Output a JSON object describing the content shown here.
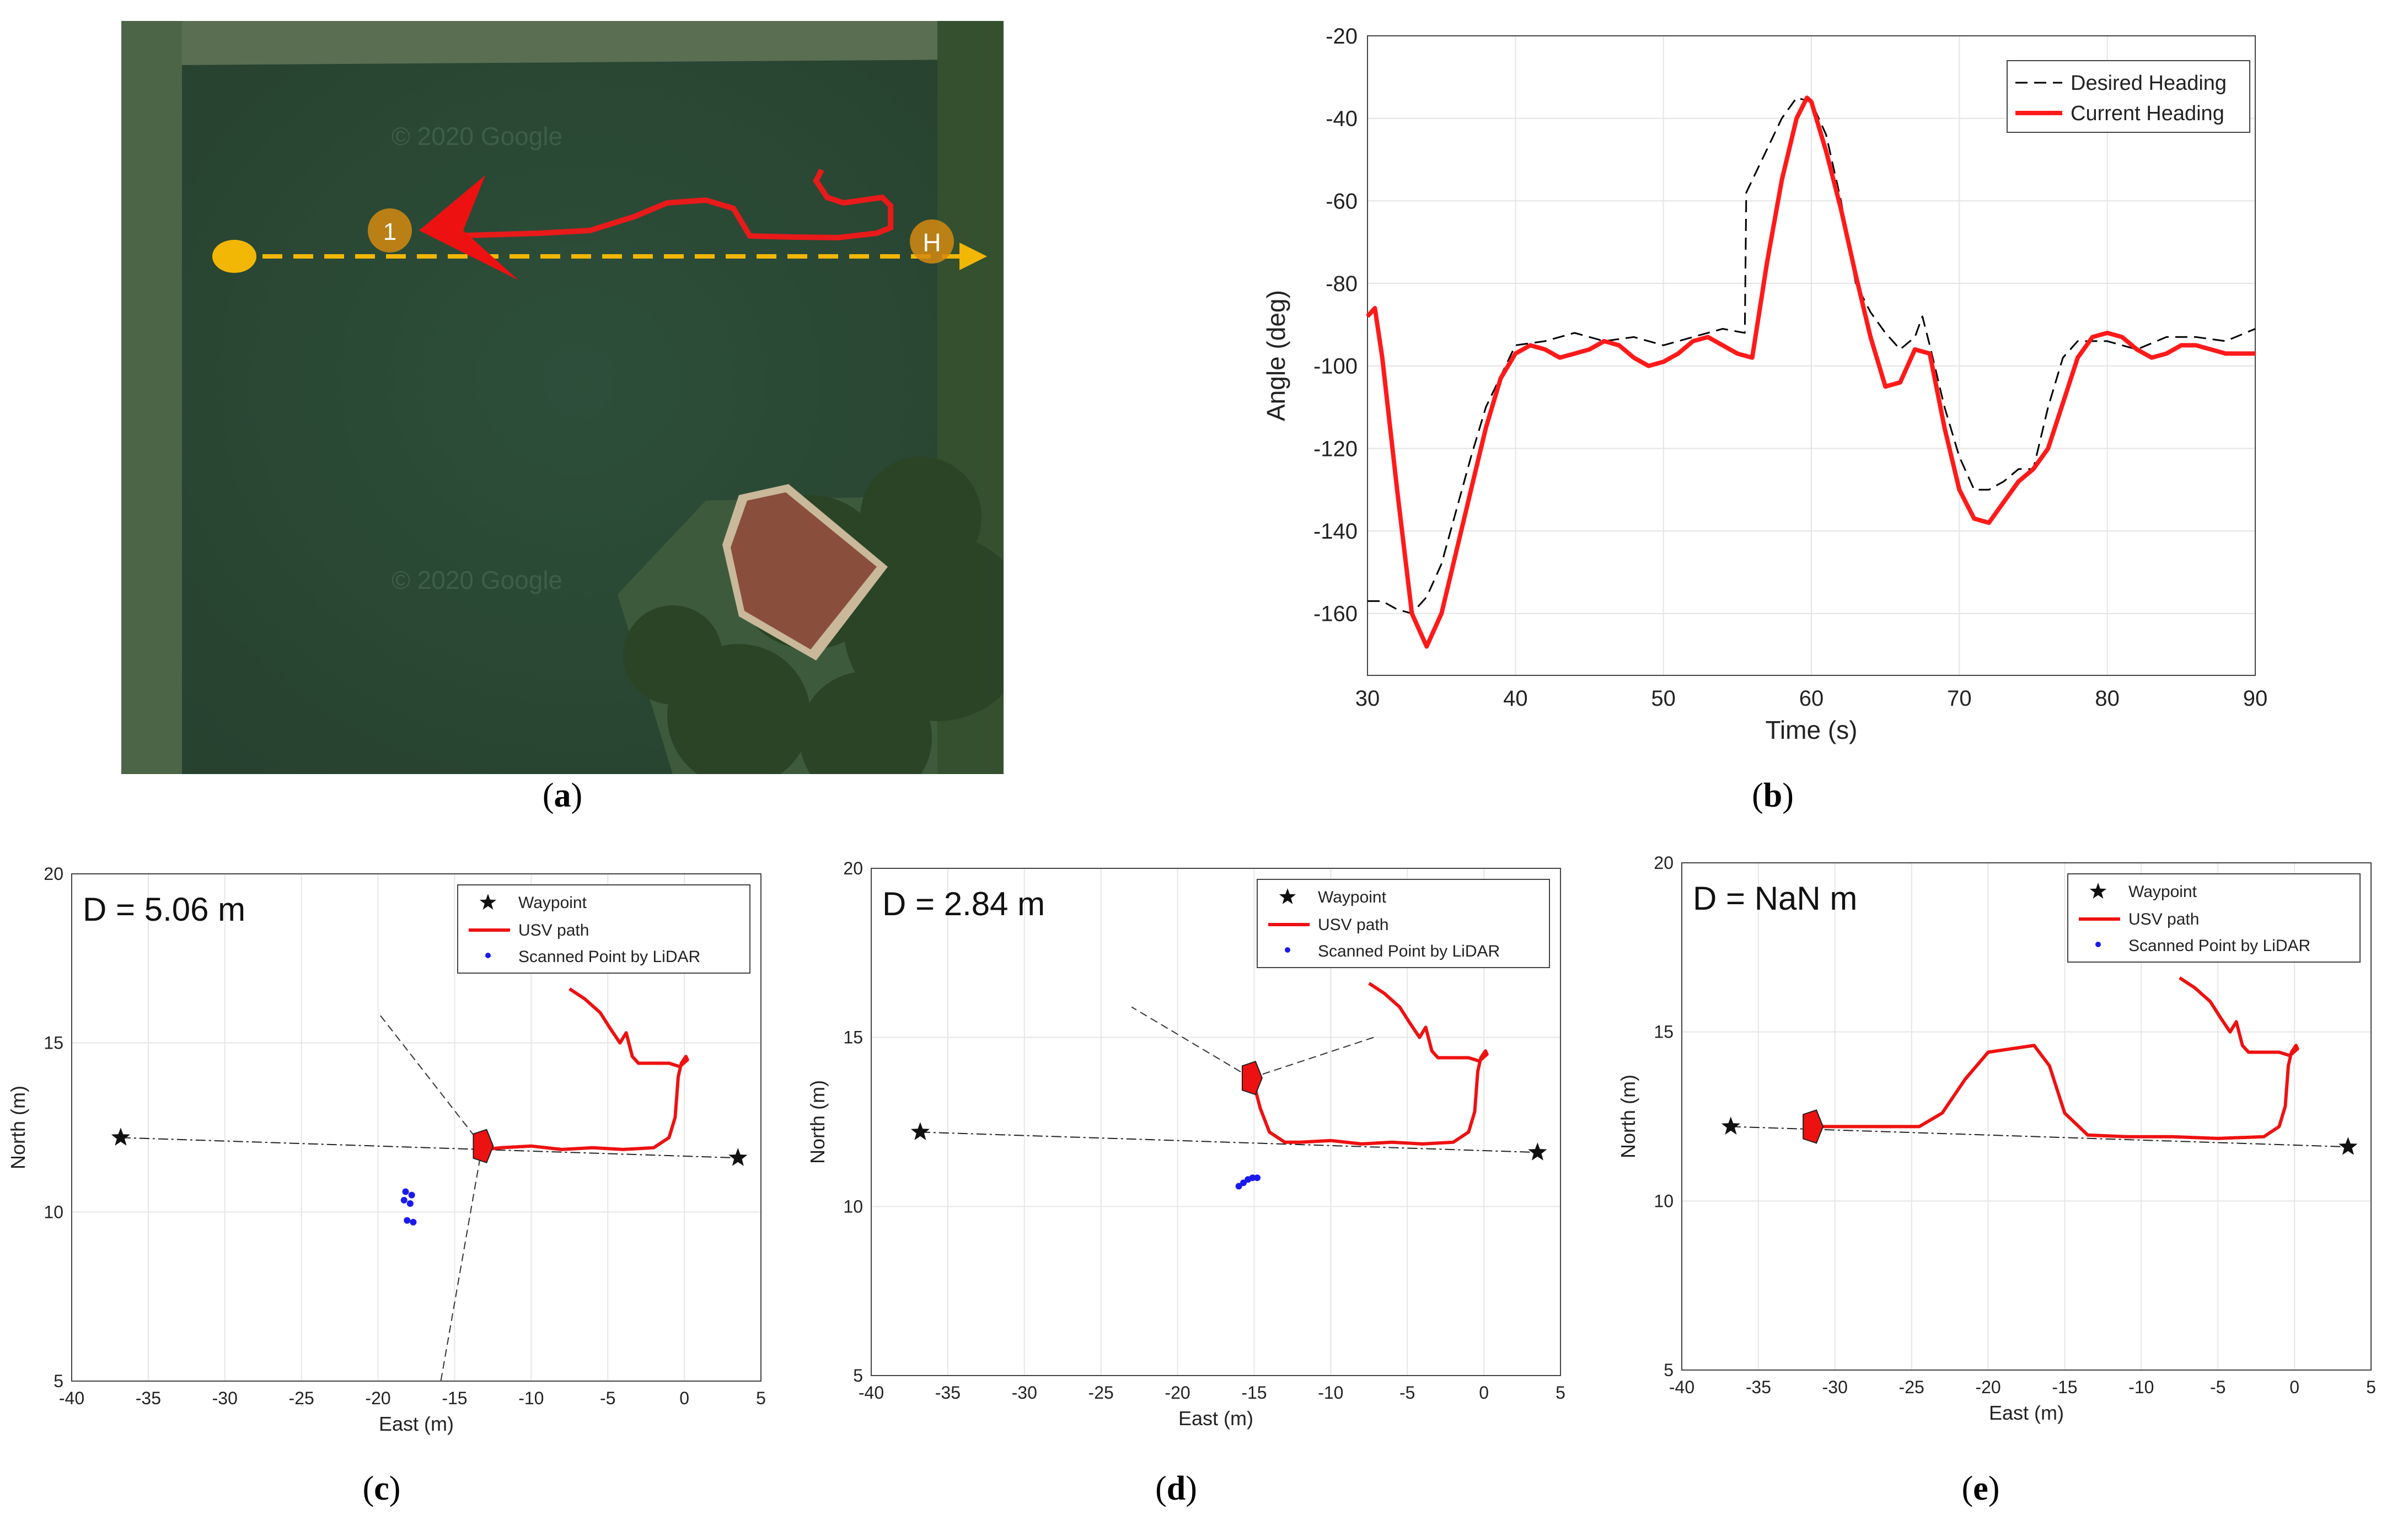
{
  "figure": {
    "captions": [
      "a",
      "b",
      "c",
      "d",
      "e"
    ]
  },
  "panel_a": {
    "watermarks": [
      "© 2020 Google",
      "© 2020 Google"
    ],
    "markers": [
      "1",
      "H"
    ],
    "colors": {
      "water": "#2a4a35",
      "path": "#e81a1a",
      "route": "#f2b705"
    }
  },
  "chart_data": [
    {
      "type": "line",
      "xlabel": "Time (s)",
      "ylabel": "Angle (deg)",
      "xlim": [
        30,
        90
      ],
      "ylim": [
        -175,
        -20
      ],
      "xticks": [
        30,
        40,
        50,
        60,
        70,
        80,
        90
      ],
      "yticks": [
        -20,
        -40,
        -60,
        -80,
        -100,
        -120,
        -140,
        -160
      ],
      "grid": true,
      "legend_position": "top-right",
      "series": [
        {
          "name": "Desired Heading",
          "color": "#000000",
          "dash": true,
          "x": [
            30,
            31,
            32,
            33,
            34,
            35,
            36,
            37,
            38,
            40,
            42,
            44,
            46,
            48,
            50,
            52,
            54,
            55.5,
            55.6,
            56,
            58,
            59,
            60,
            61,
            62,
            63,
            64,
            65,
            66,
            67,
            67.5,
            68,
            69,
            70,
            71,
            72,
            73,
            74,
            75,
            76,
            77,
            78,
            80,
            82,
            84,
            86,
            88,
            90
          ],
          "values": [
            -157,
            -157,
            -159,
            -160,
            -156,
            -148,
            -135,
            -122,
            -110,
            -95,
            -94,
            -92,
            -94,
            -93,
            -95,
            -93,
            -91,
            -92,
            -58,
            -55,
            -40,
            -35,
            -36,
            -44,
            -60,
            -80,
            -87,
            -92,
            -96,
            -93,
            -88,
            -95,
            -110,
            -122,
            -130,
            -130,
            -128,
            -125,
            -125,
            -110,
            -98,
            -94,
            -94,
            -96,
            -93,
            -93,
            -94,
            -91
          ]
        },
        {
          "name": "Current Heading",
          "color": "#ff1a1a",
          "dash": false,
          "x": [
            30,
            30.5,
            31,
            32,
            33,
            34,
            35,
            36,
            37,
            38,
            39,
            40,
            41,
            42,
            43,
            44,
            45,
            46,
            47,
            48,
            49,
            50,
            51,
            52,
            53,
            54,
            55,
            56,
            57,
            58,
            59,
            59.7,
            60,
            61,
            62,
            63,
            64,
            65,
            66,
            67,
            68,
            69,
            70,
            71,
            72,
            73,
            74,
            75,
            76,
            77,
            78,
            79,
            80,
            81,
            82,
            83,
            84,
            85,
            86,
            87,
            88,
            89,
            90
          ],
          "values": [
            -88,
            -86,
            -98,
            -130,
            -160,
            -168,
            -160,
            -145,
            -130,
            -115,
            -103,
            -97,
            -95,
            -96,
            -98,
            -97,
            -96,
            -94,
            -95,
            -98,
            -100,
            -99,
            -97,
            -94,
            -93,
            -95,
            -97,
            -98,
            -75,
            -55,
            -40,
            -35,
            -36,
            -48,
            -62,
            -78,
            -93,
            -105,
            -104,
            -96,
            -97,
            -115,
            -130,
            -137,
            -138,
            -133,
            -128,
            -125,
            -120,
            -109,
            -98,
            -93,
            -92,
            -93,
            -96,
            -98,
            -97,
            -95,
            -95,
            -96,
            -97,
            -97,
            -97
          ]
        }
      ]
    },
    {
      "type": "scatter",
      "annotation": "D = 5.06 m",
      "xlabel": "East (m)",
      "ylabel": "North (m)",
      "xlim": [
        -40,
        5
      ],
      "ylim": [
        5,
        20
      ],
      "xticks": [
        -40,
        -35,
        -30,
        -25,
        -20,
        -15,
        -10,
        -5,
        0,
        5
      ],
      "yticks": [
        5,
        10,
        15,
        20
      ],
      "grid": true,
      "legend_position": "top-right",
      "legend": [
        "Waypoint",
        "USV path",
        "Scanned Point by LiDAR"
      ],
      "waypoints": [
        [
          -36.8,
          12.2
        ],
        [
          3.5,
          11.6
        ]
      ],
      "path": [
        [
          -7.5,
          16.6
        ],
        [
          -6.5,
          16.3
        ],
        [
          -5.5,
          15.9
        ],
        [
          -4.8,
          15.4
        ],
        [
          -4.2,
          15.0
        ],
        [
          -3.8,
          15.3
        ],
        [
          -3.4,
          14.6
        ],
        [
          -3.0,
          14.4
        ],
        [
          -2.0,
          14.4
        ],
        [
          -1.0,
          14.4
        ],
        [
          -0.3,
          14.3
        ],
        [
          0.2,
          14.5
        ],
        [
          0.1,
          14.6
        ],
        [
          -0.2,
          14.4
        ],
        [
          -0.4,
          14.0
        ],
        [
          -0.6,
          12.8
        ],
        [
          -1.0,
          12.2
        ],
        [
          -2.0,
          11.9
        ],
        [
          -4.0,
          11.85
        ],
        [
          -6.0,
          11.9
        ],
        [
          -8.0,
          11.85
        ],
        [
          -10.0,
          11.95
        ],
        [
          -12.0,
          11.9
        ],
        [
          -13.0,
          11.85
        ]
      ],
      "vessel": [
        -13.2,
        11.95
      ],
      "rays": [
        [
          [
            -13.2,
            11.95
          ],
          [
            -20.0,
            15.9
          ]
        ],
        [
          [
            -13.2,
            11.95
          ],
          [
            -15.9,
            5.0
          ]
        ]
      ],
      "lidar_points": [
        [
          -18.2,
          10.6
        ],
        [
          -17.8,
          10.5
        ],
        [
          -18.3,
          10.35
        ],
        [
          -17.9,
          10.25
        ],
        [
          -18.1,
          9.75
        ],
        [
          -17.7,
          9.7
        ]
      ]
    },
    {
      "type": "scatter",
      "annotation": "D = 2.84 m",
      "xlabel": "East (m)",
      "ylabel": "North (m)",
      "xlim": [
        -40,
        5
      ],
      "ylim": [
        5,
        20
      ],
      "xticks": [
        -40,
        -35,
        -30,
        -25,
        -20,
        -15,
        -10,
        -5,
        0,
        5
      ],
      "yticks": [
        5,
        10,
        15,
        20
      ],
      "grid": true,
      "legend_position": "top-right",
      "legend": [
        "Waypoint",
        "USV path",
        "Scanned Point by LiDAR"
      ],
      "waypoints": [
        [
          -36.8,
          12.2
        ],
        [
          3.5,
          11.6
        ]
      ],
      "path": [
        [
          -7.5,
          16.6
        ],
        [
          -6.5,
          16.3
        ],
        [
          -5.5,
          15.9
        ],
        [
          -4.8,
          15.4
        ],
        [
          -4.2,
          15.0
        ],
        [
          -3.8,
          15.3
        ],
        [
          -3.4,
          14.6
        ],
        [
          -3.0,
          14.4
        ],
        [
          -2.0,
          14.4
        ],
        [
          -1.0,
          14.4
        ],
        [
          -0.3,
          14.3
        ],
        [
          0.2,
          14.5
        ],
        [
          0.1,
          14.6
        ],
        [
          -0.2,
          14.4
        ],
        [
          -0.4,
          14.0
        ],
        [
          -0.6,
          12.8
        ],
        [
          -1.0,
          12.2
        ],
        [
          -2.0,
          11.9
        ],
        [
          -4.0,
          11.85
        ],
        [
          -6.0,
          11.9
        ],
        [
          -8.0,
          11.85
        ],
        [
          -10.0,
          11.95
        ],
        [
          -12.0,
          11.9
        ],
        [
          -13.0,
          11.9
        ],
        [
          -14.0,
          12.2
        ],
        [
          -14.6,
          12.9
        ],
        [
          -15.0,
          13.6
        ]
      ],
      "vessel": [
        -15.2,
        13.8
      ],
      "rays": [
        [
          [
            -15.2,
            13.8
          ],
          [
            -23.0,
            15.9
          ]
        ],
        [
          [
            -15.2,
            13.8
          ],
          [
            -7.2,
            15.0
          ]
        ]
      ],
      "lidar_points": [
        [
          -16.0,
          10.6
        ],
        [
          -15.7,
          10.7
        ],
        [
          -15.4,
          10.8
        ],
        [
          -15.1,
          10.85
        ],
        [
          -14.8,
          10.85
        ]
      ]
    },
    {
      "type": "scatter",
      "annotation": "D = NaN m",
      "xlabel": "East (m)",
      "ylabel": "North (m)",
      "xlim": [
        -40,
        5
      ],
      "ylim": [
        5,
        20
      ],
      "xticks": [
        -40,
        -35,
        -30,
        -25,
        -20,
        -15,
        -10,
        -5,
        0,
        5
      ],
      "yticks": [
        5,
        10,
        15,
        20
      ],
      "grid": true,
      "legend_position": "top-right",
      "legend": [
        "Waypoint",
        "USV path",
        "Scanned Point by LiDAR"
      ],
      "waypoints": [
        [
          -36.8,
          12.2
        ],
        [
          3.5,
          11.6
        ]
      ],
      "path": [
        [
          -7.5,
          16.6
        ],
        [
          -6.5,
          16.3
        ],
        [
          -5.5,
          15.9
        ],
        [
          -4.8,
          15.4
        ],
        [
          -4.2,
          15.0
        ],
        [
          -3.8,
          15.3
        ],
        [
          -3.4,
          14.6
        ],
        [
          -3.0,
          14.4
        ],
        [
          -2.0,
          14.4
        ],
        [
          -1.0,
          14.4
        ],
        [
          -0.3,
          14.3
        ],
        [
          0.2,
          14.5
        ],
        [
          0.1,
          14.6
        ],
        [
          -0.2,
          14.4
        ],
        [
          -0.4,
          14.0
        ],
        [
          -0.6,
          12.8
        ],
        [
          -1.0,
          12.2
        ],
        [
          -2.0,
          11.9
        ],
        [
          -5.0,
          11.85
        ],
        [
          -8.0,
          11.9
        ],
        [
          -11.0,
          11.9
        ],
        [
          -13.5,
          11.95
        ],
        [
          -15.0,
          12.6
        ],
        [
          -16.0,
          14.0
        ],
        [
          -17.0,
          14.6
        ],
        [
          -18.5,
          14.5
        ],
        [
          -20.0,
          14.4
        ],
        [
          -21.5,
          13.6
        ],
        [
          -23.0,
          12.6
        ],
        [
          -24.5,
          12.2
        ],
        [
          -27.0,
          12.2
        ],
        [
          -30.0,
          12.2
        ],
        [
          -31.2,
          12.2
        ]
      ],
      "vessel": [
        -31.5,
        12.2
      ],
      "rays": [],
      "lidar_points": []
    }
  ]
}
